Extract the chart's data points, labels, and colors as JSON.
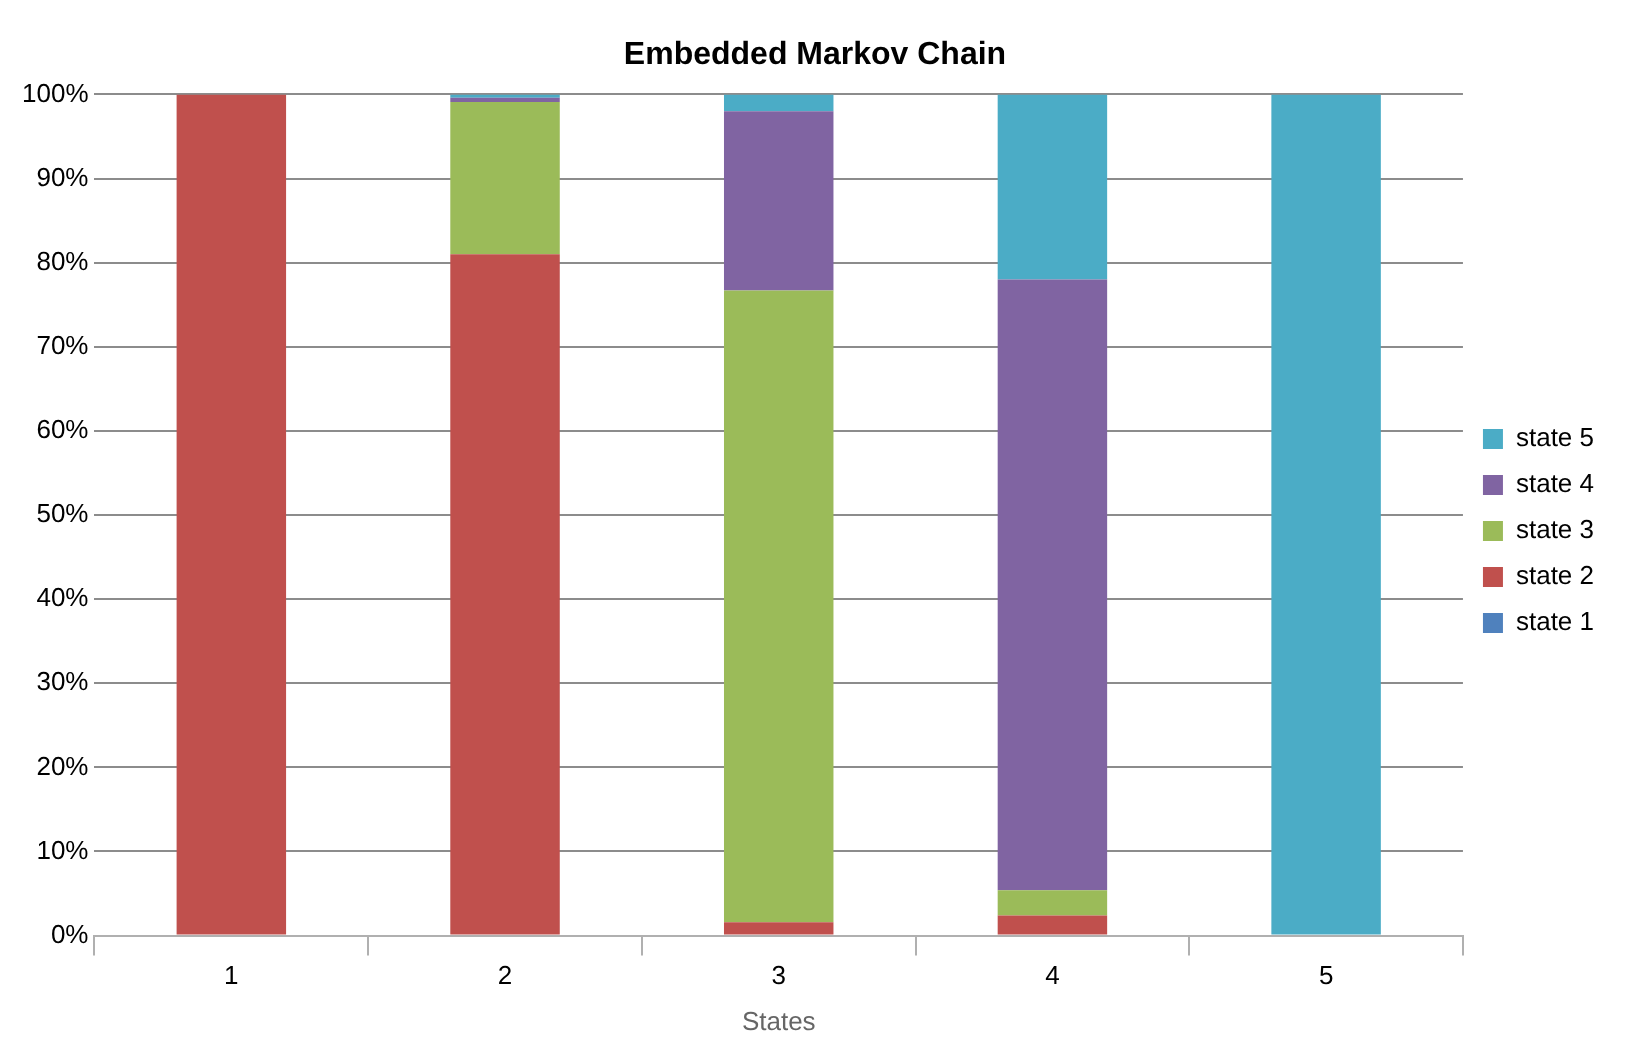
{
  "chart_data": {
    "type": "bar",
    "title": "Embedded Markov Chain",
    "xlabel": "States",
    "categories": [
      "1",
      "2",
      "3",
      "4",
      "5"
    ],
    "stacked": true,
    "ylim": [
      0,
      100
    ],
    "yticks": [
      {
        "value": 0,
        "label": "0%"
      },
      {
        "value": 10,
        "label": "10%"
      },
      {
        "value": 20,
        "label": "20%"
      },
      {
        "value": 30,
        "label": "30%"
      },
      {
        "value": 40,
        "label": "40%"
      },
      {
        "value": 50,
        "label": "50%"
      },
      {
        "value": 60,
        "label": "60%"
      },
      {
        "value": 70,
        "label": "70%"
      },
      {
        "value": 80,
        "label": "80%"
      },
      {
        "value": 90,
        "label": "90%"
      },
      {
        "value": 100,
        "label": "100%"
      }
    ],
    "grid": "y",
    "legend": "right",
    "series": [
      {
        "name": "state 1",
        "color": "#4f81bd",
        "values": [
          0,
          0,
          0,
          0,
          0
        ]
      },
      {
        "name": "state 2",
        "color": "#c0504d",
        "values": [
          100,
          81,
          1.6,
          2.4,
          0
        ]
      },
      {
        "name": "state 3",
        "color": "#9bbb59",
        "values": [
          0,
          18.1,
          75.1,
          3,
          0
        ]
      },
      {
        "name": "state 4",
        "color": "#8064a2",
        "values": [
          0,
          0.5,
          21.3,
          72.6,
          0
        ]
      },
      {
        "name": "state 5",
        "color": "#4bacc6",
        "values": [
          0,
          0.4,
          2,
          22,
          100
        ]
      }
    ]
  }
}
